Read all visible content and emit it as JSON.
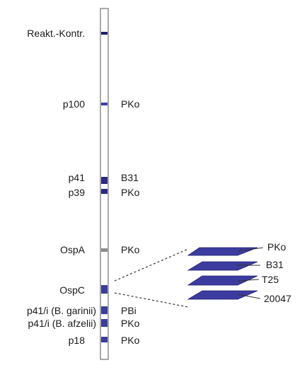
{
  "colors": {
    "band": "#3c3ca0",
    "band_dark": "#1e1e70",
    "band_gray": "#8c8c8c",
    "strip_border": "#555555",
    "text": "#1a1a1a"
  },
  "bands": [
    {
      "name": "Reakt.-Kontr.",
      "source": "",
      "color": "band_dark"
    },
    {
      "name": "p100",
      "source": "PKo",
      "color": "band"
    },
    {
      "name": "p41",
      "source": "B31",
      "color": "band"
    },
    {
      "name": "p39",
      "source": "PKo",
      "color": "band"
    },
    {
      "name": "OspA",
      "source": "PKo",
      "color": "band_gray"
    },
    {
      "name": "OspC",
      "source": "",
      "color": "band"
    },
    {
      "name": "p41/i (B. garinii)",
      "source": "PBi",
      "color": "band"
    },
    {
      "name": "p41/i (B. afzelii)",
      "source": "PKo",
      "color": "band"
    },
    {
      "name": "p18",
      "source": "PKo",
      "color": "band"
    }
  ],
  "ospc_variants": [
    "PKo",
    "B31",
    "T25",
    "20047"
  ]
}
